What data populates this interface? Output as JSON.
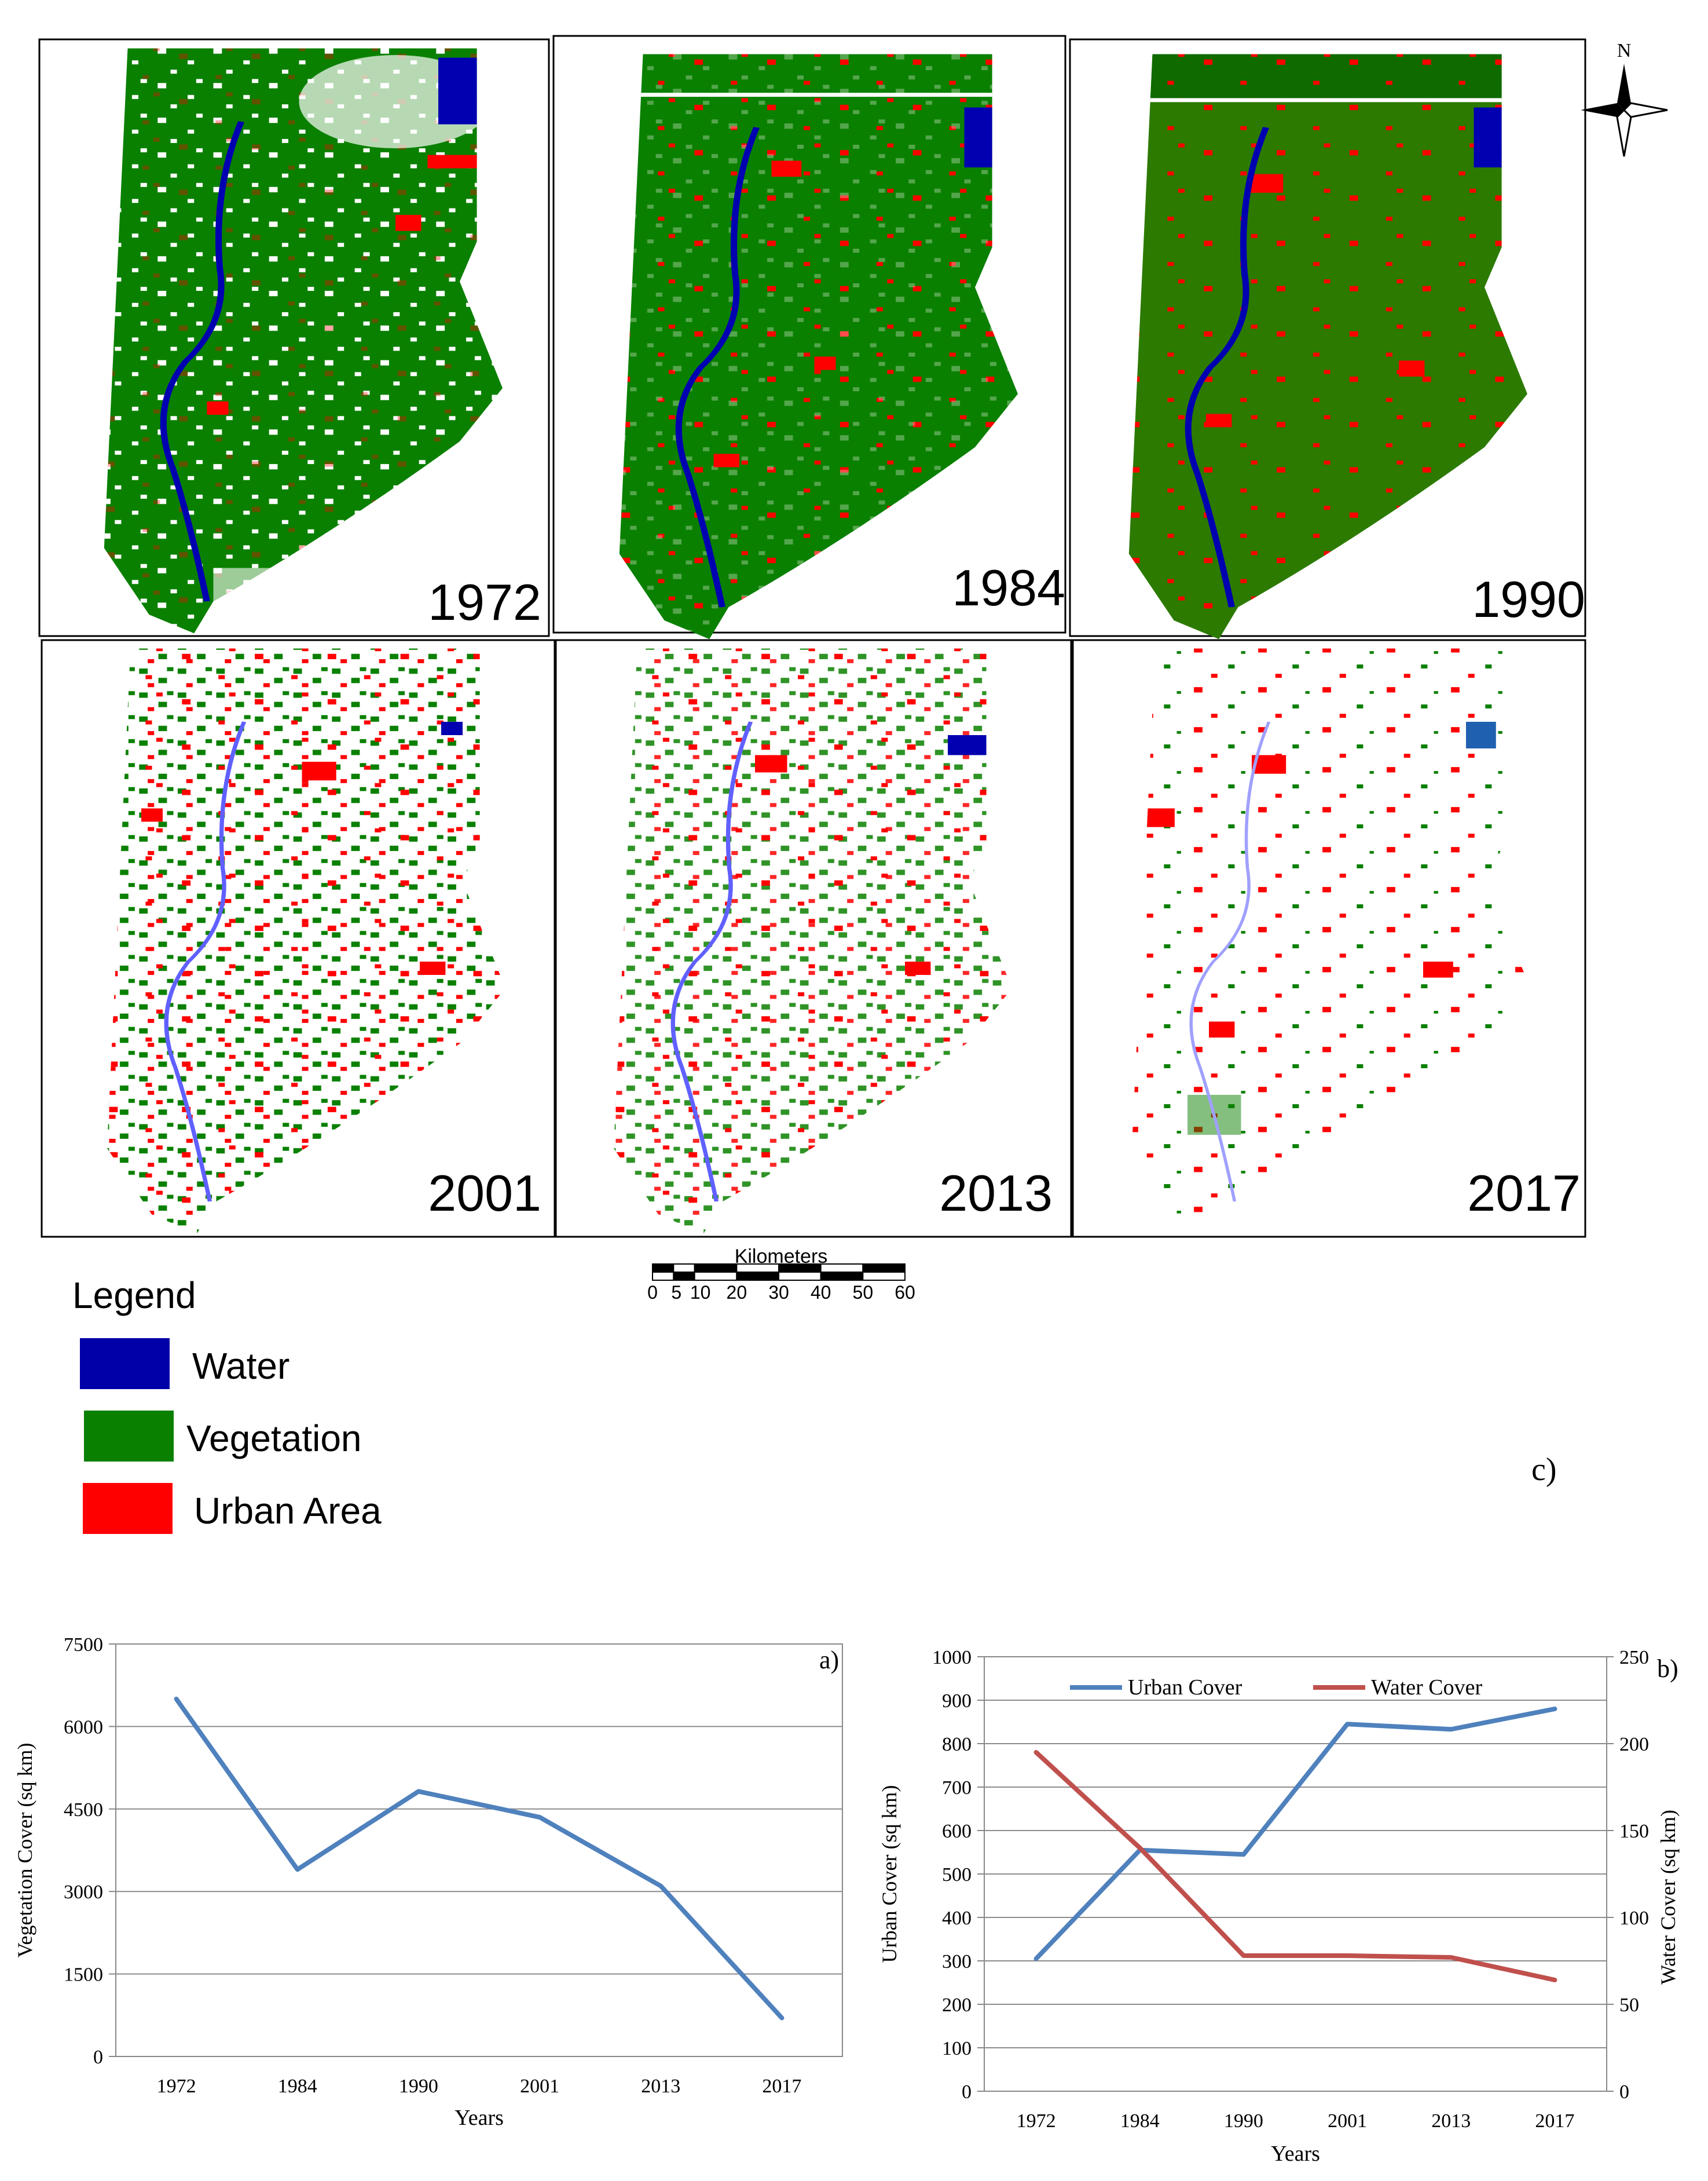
{
  "maps": {
    "panel_label": "c)",
    "years": [
      "1972",
      "1984",
      "1990",
      "2001",
      "2013",
      "2017"
    ],
    "compass_letter": "N",
    "scale": {
      "title": "Kilometers",
      "ticks": [
        "0",
        "5",
        "10",
        "20",
        "30",
        "40",
        "50",
        "60"
      ]
    },
    "legend": {
      "title": "Legend",
      "items": [
        {
          "label": "Water",
          "color": "#0000a8"
        },
        {
          "label": "Vegetation",
          "color": "#0a8000"
        },
        {
          "label": "Urban Area",
          "color": "#ff0000"
        }
      ]
    }
  },
  "chart_data": [
    {
      "type": "line",
      "panel_label": "a)",
      "categories": [
        "1972",
        "1984",
        "1990",
        "2001",
        "2013",
        "2017"
      ],
      "series": [
        {
          "name": "Vegetation Cover",
          "color": "#4f81bd",
          "values": [
            6500,
            3400,
            4820,
            4350,
            3100,
            700
          ]
        }
      ],
      "xlabel": "Years",
      "ylabel": "Vegetation Cover (sq km)",
      "ylim": [
        0,
        7500
      ],
      "yticks": [
        "0",
        "1500",
        "3000",
        "4500",
        "6000",
        "7500"
      ],
      "grid": true
    },
    {
      "type": "line",
      "panel_label": "b)",
      "categories": [
        "1972",
        "1984",
        "1990",
        "2001",
        "2013",
        "2017"
      ],
      "series": [
        {
          "name": "Urban Cover",
          "axis": "left",
          "color": "#4f81bd",
          "values": [
            305,
            555,
            545,
            845,
            833,
            880
          ]
        },
        {
          "name": "Water Cover",
          "axis": "right",
          "color": "#c0504d",
          "values": [
            195,
            140,
            78,
            78,
            77,
            64
          ]
        }
      ],
      "xlabel": "Years",
      "ylabel": "Urban Cover (sq km)",
      "ylabel_right": "Water Cover (sq km)",
      "ylim": [
        0,
        1000
      ],
      "ylim_right": [
        0,
        250
      ],
      "yticks": [
        "0",
        "100",
        "200",
        "300",
        "400",
        "500",
        "600",
        "700",
        "800",
        "900",
        "1000"
      ],
      "yticks_right": [
        "0",
        "50",
        "100",
        "150",
        "200",
        "250"
      ],
      "legend": "top",
      "grid": true
    }
  ]
}
